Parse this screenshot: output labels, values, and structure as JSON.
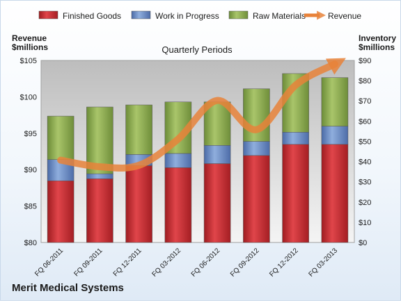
{
  "company": "Merit Medical Systems",
  "chart_data": {
    "type": "bar",
    "stacked": true,
    "subtitle": "Quarterly Periods",
    "categories": [
      "FQ 06-2011",
      "FQ 09-2011",
      "FQ 12-2011",
      "FQ 03-2012",
      "FQ 06-2012",
      "FQ 09-2012",
      "FQ 12-2012",
      "FQ 03-2013"
    ],
    "left_axis": {
      "label_line1": "Revenue",
      "label_line2": "$millions",
      "min": 80,
      "max": 105,
      "ticks": [
        80,
        85,
        90,
        95,
        100,
        105
      ],
      "tick_labels": [
        "$80",
        "$85",
        "$90",
        "$95",
        "$100",
        "$105"
      ]
    },
    "right_axis": {
      "label_line1": "Inventory",
      "label_line2": "$millions",
      "min": 0,
      "max": 90,
      "ticks": [
        0,
        10,
        20,
        30,
        40,
        50,
        60,
        70,
        80,
        90
      ],
      "tick_labels": [
        "$0",
        "$10",
        "$20",
        "$30",
        "$40",
        "$50",
        "$60",
        "$70",
        "$80",
        "$90"
      ]
    },
    "series": [
      {
        "name": "Finished Goods",
        "axis": "right",
        "color": "#c0282d",
        "values": [
          30.5,
          31.5,
          38,
          37,
          39,
          43,
          48.5,
          48.5
        ]
      },
      {
        "name": "Work in Progress",
        "axis": "right",
        "color": "#5b7fc0",
        "values": [
          10.5,
          2.5,
          5.5,
          7,
          9,
          7,
          6,
          9
        ]
      },
      {
        "name": "Raw Materials",
        "axis": "right",
        "color": "#86a94a",
        "values": [
          21.5,
          33,
          24.5,
          25.5,
          21.5,
          26,
          29,
          24
        ]
      },
      {
        "name": "Revenue",
        "type": "line",
        "axis": "left",
        "color": "#e8823a",
        "values": [
          91.3,
          90.4,
          90.6,
          94.2,
          99.5,
          95.5,
          101.6,
          104.5
        ]
      }
    ],
    "legend_position": "top",
    "grid": false
  }
}
